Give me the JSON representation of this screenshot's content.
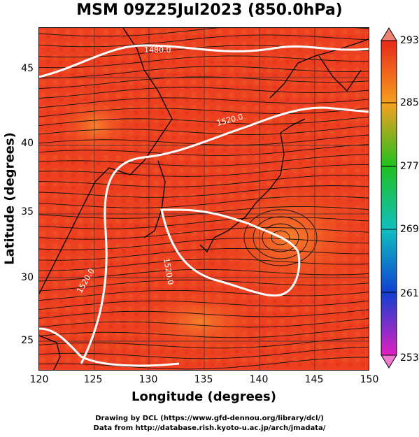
{
  "title": "MSM 09Z25Jul2023 (850.0hPa)",
  "axes": {
    "xlabel": "Longitude (degrees)",
    "ylabel": "Latitude  (degrees)",
    "xticks": [
      "120",
      "125",
      "130",
      "135",
      "140",
      "145",
      "150"
    ],
    "yticks": [
      "25",
      "30",
      "35",
      "40",
      "45"
    ]
  },
  "colorbar": {
    "ticks": [
      "293",
      "285",
      "277",
      "269",
      "261",
      "253"
    ]
  },
  "contour_labels": [
    "1480.0",
    "1520.0",
    "1520.0",
    "1520.0"
  ],
  "footer": {
    "line1": "Drawing by DCL (https://www.gfd-dennou.org/library/dcl/)",
    "line2": "Data from http://database.rish.kyoto-u.ac.jp/arch/jmadata/"
  },
  "chart_data": {
    "type": "heatmap",
    "xlim": [
      120,
      150
    ],
    "ylim": [
      22.4,
      47.6
    ],
    "color_range": [
      253,
      293
    ],
    "colors": {
      "high": "#f03a1c",
      "warmest": "#e8281a",
      "mid": "#20c020",
      "low": "#1040d0",
      "lowest": "#e020c0",
      "contour": "#ffffff"
    }
  }
}
